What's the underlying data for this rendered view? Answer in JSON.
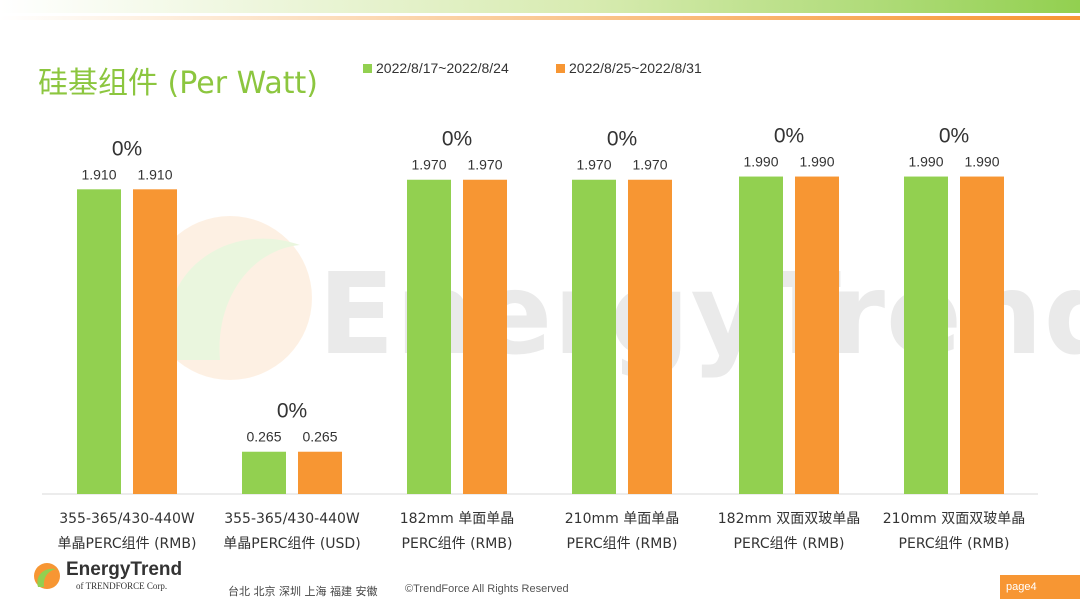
{
  "header": {
    "title": "硅基组件 (Per Watt)"
  },
  "legend": [
    {
      "label": "2022/8/17~2022/8/24",
      "color": "#92d050"
    },
    {
      "label": "2022/8/25~2022/8/31",
      "color": "#f79633"
    }
  ],
  "watermark": "EnergyTrend",
  "footer": {
    "brand": "EnergyTrend",
    "brand_sub": "of TRENDFORCE Corp.",
    "cities": "台北  北京  深圳  上海  福建  安徽",
    "copyright": "©TrendForce All Rights Reserved",
    "page": "page4"
  },
  "chart_data": {
    "type": "bar",
    "categories": [
      [
        "355-365/430-440W",
        "单晶PERC组件 (RMB)"
      ],
      [
        "355-365/430-440W",
        "单晶PERC组件 (USD)"
      ],
      [
        "182mm 单面单晶",
        "PERC组件 (RMB)"
      ],
      [
        "210mm 单面单晶",
        "PERC组件 (RMB)"
      ],
      [
        "182mm 双面双玻单晶",
        "PERC组件 (RMB)"
      ],
      [
        "210mm 双面双玻单晶",
        "PERC组件 (RMB)"
      ]
    ],
    "series": [
      {
        "name": "2022/8/17~2022/8/24",
        "color": "#92d050",
        "values": [
          1.91,
          0.265,
          1.97,
          1.97,
          1.99,
          1.99
        ],
        "labels": [
          "1.910",
          "0.265",
          "1.970",
          "1.970",
          "1.990",
          "1.990"
        ]
      },
      {
        "name": "2022/8/25~2022/8/31",
        "color": "#f79633",
        "values": [
          1.91,
          0.265,
          1.97,
          1.97,
          1.99,
          1.99
        ],
        "labels": [
          "1.910",
          "0.265",
          "1.970",
          "1.970",
          "1.990",
          "1.990"
        ]
      }
    ],
    "changes": [
      "0%",
      "0%",
      "0%",
      "0%",
      "0%",
      "0%"
    ],
    "ylim": [
      0,
      2.1
    ],
    "grid": false,
    "legend_position": "top"
  }
}
